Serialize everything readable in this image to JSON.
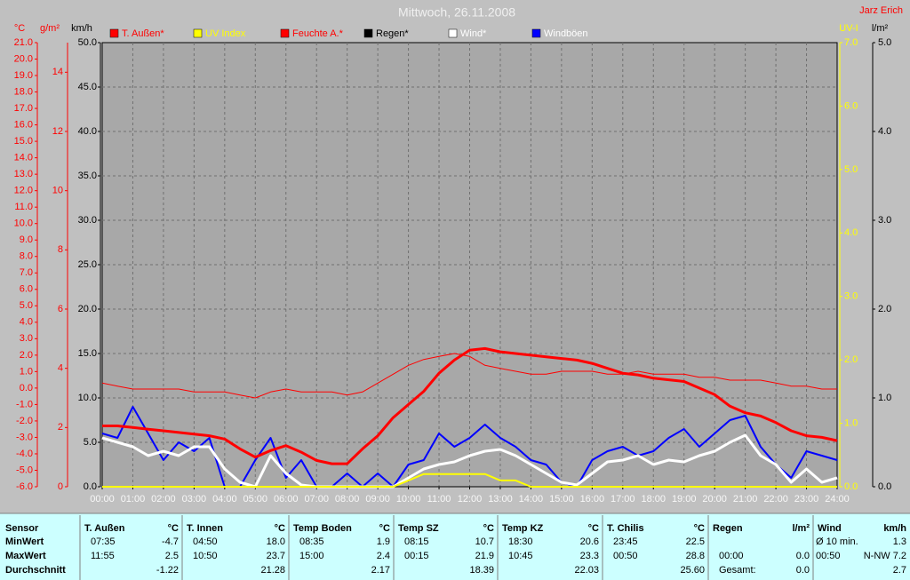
{
  "chart_data": {
    "type": "line",
    "title": "Mittwoch, 26.11.2008",
    "author": "Jarz Erich",
    "axes": [
      {
        "label": "°C",
        "color": "#ff0000",
        "lim": [
          -6,
          21
        ],
        "ticks": [
          {
            "value": -6,
            "label": "-6.0"
          },
          {
            "value": -5,
            "label": "-5.0"
          },
          {
            "value": -4,
            "label": "-4.0"
          },
          {
            "value": -3,
            "label": "-3.0"
          },
          {
            "value": -2,
            "label": "-2.0"
          },
          {
            "value": -1,
            "label": "-1.0"
          },
          {
            "value": 0,
            "label": "0.0"
          },
          {
            "value": 1,
            "label": "1.0"
          },
          {
            "value": 2,
            "label": "2.0"
          },
          {
            "value": 3,
            "label": "3.0"
          },
          {
            "value": 4,
            "label": "4.0"
          },
          {
            "value": 5,
            "label": "5.0"
          },
          {
            "value": 6,
            "label": "6.0"
          },
          {
            "value": 7,
            "label": "7.0"
          },
          {
            "value": 8,
            "label": "8.0"
          },
          {
            "value": 9,
            "label": "9.0"
          },
          {
            "value": 10,
            "label": "10.0"
          },
          {
            "value": 11,
            "label": "11.0"
          },
          {
            "value": 12,
            "label": "12.0"
          },
          {
            "value": 13,
            "label": "13.0"
          },
          {
            "value": 14,
            "label": "14.0"
          },
          {
            "value": 15,
            "label": "15.0"
          },
          {
            "value": 16,
            "label": "16.0"
          },
          {
            "value": 17,
            "label": "17.0"
          },
          {
            "value": 18,
            "label": "18.0"
          },
          {
            "value": 19,
            "label": "19.0"
          },
          {
            "value": 20,
            "label": "20.0"
          },
          {
            "value": 21,
            "label": "21.0"
          }
        ]
      },
      {
        "label": "g/m²",
        "color": "#ff0000",
        "lim": [
          0,
          15
        ],
        "ticks": [
          0,
          2,
          4,
          6,
          8,
          10,
          12,
          14
        ]
      },
      {
        "label": "km/h",
        "color": "#000000",
        "lim": [
          0,
          50
        ],
        "ticks": [
          {
            "value": 0,
            "label": "0.0"
          },
          {
            "value": 5,
            "label": "5.0"
          },
          {
            "value": 10,
            "label": "10.0"
          },
          {
            "value": 15,
            "label": "15.0"
          },
          {
            "value": 20,
            "label": "20.0"
          },
          {
            "value": 25,
            "label": "25.0"
          },
          {
            "value": 30,
            "label": "30.0"
          },
          {
            "value": 35,
            "label": "35.0"
          },
          {
            "value": 40,
            "label": "40.0"
          },
          {
            "value": 45,
            "label": "45.0"
          },
          {
            "value": 50,
            "label": "50.0"
          }
        ]
      },
      {
        "label": "UV-I",
        "color": "#ffff00",
        "lim": [
          0,
          7
        ],
        "ticks": [
          {
            "value": 0,
            "label": "0.0"
          },
          {
            "value": 1,
            "label": "1.0"
          },
          {
            "value": 2,
            "label": "2.0"
          },
          {
            "value": 3,
            "label": "3.0"
          },
          {
            "value": 4,
            "label": "4.0"
          },
          {
            "value": 5,
            "label": "5.0"
          },
          {
            "value": 6,
            "label": "6.0"
          },
          {
            "value": 7,
            "label": "7.0"
          }
        ]
      },
      {
        "label": "l/m²",
        "color": "#000000",
        "lim": [
          0,
          5
        ],
        "ticks": [
          {
            "value": 0,
            "label": "0.0"
          },
          {
            "value": 1,
            "label": "1.0"
          },
          {
            "value": 2,
            "label": "2.0"
          },
          {
            "value": 3,
            "label": "3.0"
          },
          {
            "value": 4,
            "label": "4.0"
          },
          {
            "value": 5,
            "label": "5.0"
          }
        ]
      }
    ],
    "grid": true,
    "xlim": [
      0,
      24
    ],
    "xticks": [
      {
        "value": 0,
        "label": "00:00"
      },
      {
        "value": 1,
        "label": "01:00"
      },
      {
        "value": 2,
        "label": "02:00"
      },
      {
        "value": 3,
        "label": "03:00"
      },
      {
        "value": 4,
        "label": "04:00"
      },
      {
        "value": 5,
        "label": "05:00"
      },
      {
        "value": 6,
        "label": "06:00"
      },
      {
        "value": 7,
        "label": "07:00"
      },
      {
        "value": 8,
        "label": "08:00"
      },
      {
        "value": 9,
        "label": "09:00"
      },
      {
        "value": 10,
        "label": "10:00"
      },
      {
        "value": 11,
        "label": "11:00"
      },
      {
        "value": 12,
        "label": "12:00"
      },
      {
        "value": 13,
        "label": "13:00"
      },
      {
        "value": 14,
        "label": "14:00"
      },
      {
        "value": 15,
        "label": "15:00"
      },
      {
        "value": 16,
        "label": "16:00"
      },
      {
        "value": 17,
        "label": "17:00"
      },
      {
        "value": 18,
        "label": "18:00"
      },
      {
        "value": 19,
        "label": "19:00"
      },
      {
        "value": 20,
        "label": "20:00"
      },
      {
        "value": 21,
        "label": "21:00"
      },
      {
        "value": 22,
        "label": "22:00"
      },
      {
        "value": 23,
        "label": "23:00"
      },
      {
        "value": 24,
        "label": "24:00"
      }
    ],
    "x": [
      0,
      0.5,
      1,
      1.5,
      2,
      2.5,
      3,
      3.5,
      4,
      4.5,
      5,
      5.5,
      6,
      6.5,
      7,
      7.5,
      8,
      8.5,
      9,
      9.5,
      10,
      10.5,
      11,
      11.5,
      12,
      12.5,
      13,
      13.5,
      14,
      14.5,
      15,
      15.5,
      16,
      16.5,
      17,
      17.5,
      18,
      18.5,
      19,
      19.5,
      20,
      20.5,
      21,
      21.5,
      22,
      22.5,
      23,
      23.5,
      24
    ],
    "series": [
      {
        "name": "T. Außen*",
        "color": "#ff0000",
        "axis": 0,
        "width": 3,
        "values": [
          -2.3,
          -2.3,
          -2.4,
          -2.5,
          -2.6,
          -2.7,
          -2.8,
          -2.9,
          -3.1,
          -3.7,
          -4.2,
          -3.8,
          -3.5,
          -3.9,
          -4.4,
          -4.6,
          -4.6,
          -3.7,
          -2.9,
          -1.8,
          -1.0,
          -0.2,
          0.9,
          1.7,
          2.3,
          2.4,
          2.2,
          2.1,
          2.0,
          1.9,
          1.8,
          1.7,
          1.5,
          1.2,
          0.9,
          0.8,
          0.6,
          0.5,
          0.4,
          0.0,
          -0.4,
          -1.1,
          -1.5,
          -1.7,
          -2.1,
          -2.6,
          -2.9,
          -3.0,
          -3.2
        ]
      },
      {
        "name": "UV Index",
        "color": "#ffff00",
        "axis": 3,
        "width": 2,
        "values": [
          0,
          0,
          0,
          0,
          0,
          0,
          0,
          0,
          0,
          0,
          0,
          0,
          0,
          0,
          0,
          0,
          0,
          0,
          0,
          0,
          0.1,
          0.2,
          0.2,
          0.2,
          0.2,
          0.2,
          0.1,
          0.1,
          0,
          0,
          0,
          0,
          0,
          0,
          0,
          0,
          0,
          0,
          0,
          0,
          0,
          0,
          0,
          0,
          0,
          0,
          0,
          0,
          0
        ]
      },
      {
        "name": "Feuchte A.*",
        "color": "#ff0000",
        "axis": 1,
        "width": 1,
        "values": [
          3.5,
          3.4,
          3.3,
          3.3,
          3.3,
          3.3,
          3.2,
          3.2,
          3.2,
          3.1,
          3.0,
          3.2,
          3.3,
          3.2,
          3.2,
          3.2,
          3.1,
          3.2,
          3.5,
          3.8,
          4.1,
          4.3,
          4.4,
          4.5,
          4.4,
          4.1,
          4.0,
          3.9,
          3.8,
          3.8,
          3.9,
          3.9,
          3.9,
          3.8,
          3.8,
          3.9,
          3.8,
          3.8,
          3.8,
          3.7,
          3.7,
          3.6,
          3.6,
          3.6,
          3.5,
          3.4,
          3.4,
          3.3,
          3.3
        ]
      },
      {
        "name": "Regen*",
        "color": "#000000",
        "axis": 4,
        "width": 1,
        "values": [
          0,
          0,
          0,
          0,
          0,
          0,
          0,
          0,
          0,
          0,
          0,
          0,
          0,
          0,
          0,
          0,
          0,
          0,
          0,
          0,
          0,
          0,
          0,
          0,
          0,
          0,
          0,
          0,
          0,
          0,
          0,
          0,
          0,
          0,
          0,
          0,
          0,
          0,
          0,
          0,
          0,
          0,
          0,
          0,
          0,
          0,
          0,
          0,
          0
        ]
      },
      {
        "name": "Wind*",
        "color": "#ffffff",
        "axis": 2,
        "width": 3,
        "values": [
          5.5,
          5.0,
          4.5,
          3.5,
          4.0,
          3.5,
          4.5,
          4.5,
          2.0,
          0.5,
          0.0,
          3.5,
          1.5,
          0.2,
          0.0,
          0.0,
          0.0,
          0.0,
          0.0,
          0.0,
          1.0,
          2.0,
          2.5,
          2.8,
          3.5,
          4.0,
          4.2,
          3.5,
          2.5,
          1.5,
          0.5,
          0.2,
          1.5,
          2.8,
          3.0,
          3.5,
          2.5,
          3.0,
          2.8,
          3.5,
          4.0,
          5.0,
          5.8,
          3.5,
          2.5,
          0.5,
          2.0,
          0.5,
          1.0
        ]
      },
      {
        "name": "Windböen",
        "color": "#0000ff",
        "axis": 2,
        "width": 2,
        "values": [
          6.0,
          5.5,
          9.0,
          6.0,
          3.0,
          5.0,
          4.0,
          5.5,
          0.0,
          0.0,
          3.0,
          5.5,
          1.0,
          3.0,
          0.0,
          0.0,
          1.5,
          0.0,
          1.5,
          0.0,
          2.5,
          3.0,
          6.0,
          4.5,
          5.5,
          7.0,
          5.5,
          4.5,
          3.0,
          2.5,
          0.5,
          0.0,
          3.0,
          4.0,
          4.5,
          3.5,
          4.0,
          5.5,
          6.5,
          4.5,
          6.0,
          7.5,
          8.0,
          4.5,
          2.5,
          1.0,
          4.0,
          3.5,
          3.0
        ]
      }
    ]
  },
  "table": {
    "sensor_header": "Sensor",
    "row_labels": [
      "MinWert",
      "MaxWert",
      "Durchschnitt"
    ],
    "columns": [
      {
        "name": "T. Außen",
        "unit": "°C",
        "cells": [
          {
            "row": 0,
            "time": "07:35",
            "value": "-4.7"
          },
          {
            "row": 1,
            "time": "11:55",
            "value": "2.5"
          },
          {
            "row": 2,
            "value": "-1.22"
          }
        ]
      },
      {
        "name": "T. Innen",
        "unit": "°C",
        "cells": [
          {
            "row": 0,
            "time": "04:50",
            "value": "18.0"
          },
          {
            "row": 1,
            "time": "10:50",
            "value": "23.7"
          },
          {
            "row": 2,
            "value": "21.28"
          }
        ]
      },
      {
        "name": "Temp Boden",
        "unit": "°C",
        "cells": [
          {
            "row": 0,
            "time": "08:35",
            "value": "1.9"
          },
          {
            "row": 1,
            "time": "15:00",
            "value": "2.4"
          },
          {
            "row": 2,
            "value": "2.17"
          }
        ]
      },
      {
        "name": "Temp SZ",
        "unit": "°C",
        "cells": [
          {
            "row": 0,
            "time": "08:15",
            "value": "10.7"
          },
          {
            "row": 1,
            "time": "00:15",
            "value": "21.9"
          },
          {
            "row": 2,
            "value": "18.39"
          }
        ]
      },
      {
        "name": "Temp KZ",
        "unit": "°C",
        "cells": [
          {
            "row": 0,
            "time": "18:30",
            "value": "20.6"
          },
          {
            "row": 1,
            "time": "10:45",
            "value": "23.3"
          },
          {
            "row": 2,
            "value": "22.03"
          }
        ]
      },
      {
        "name": "T. Chilis",
        "unit": "°C",
        "cells": [
          {
            "row": 0,
            "time": "23:45",
            "value": "22.5"
          },
          {
            "row": 1,
            "time": "00:50",
            "value": "28.8"
          },
          {
            "row": 2,
            "value": "25.60"
          }
        ]
      },
      {
        "name": "Regen",
        "unit": "l/m²",
        "cells": [
          {
            "row": 1,
            "time": "00:00",
            "value": "0.0"
          },
          {
            "row": 2,
            "time": "Gesamt:",
            "value": "0.0"
          }
        ]
      },
      {
        "name": "Wind",
        "unit": "km/h",
        "cells": [
          {
            "row": 0,
            "time": "Ø 10 min.",
            "value": "1.3"
          },
          {
            "row": 1,
            "time": "00:50",
            "value": "N-NW 7.2"
          },
          {
            "row": 2,
            "value": "2.7"
          }
        ]
      }
    ]
  }
}
